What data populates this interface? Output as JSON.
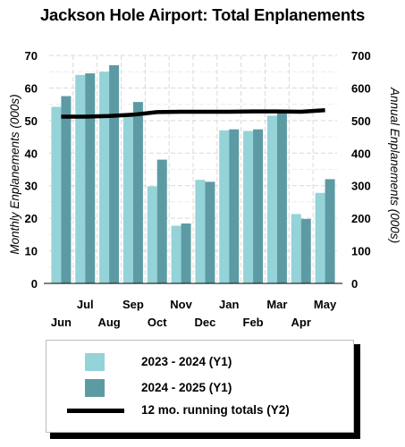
{
  "chart_data": {
    "type": "bar",
    "title": "Jackson Hole Airport: Total Enplanements",
    "categories": [
      "Jun",
      "Jul",
      "Aug",
      "Sep",
      "Oct",
      "Nov",
      "Dec",
      "Jan",
      "Feb",
      "Mar",
      "Apr",
      "May"
    ],
    "ylabel": "Monthly Enplanements (000s)",
    "y2label": "Annual Enplanements (000s)",
    "ylim": [
      0,
      70
    ],
    "yticks": [
      0,
      10,
      20,
      30,
      40,
      50,
      60,
      70
    ],
    "y2lim": [
      0,
      700
    ],
    "y2ticks": [
      0,
      100,
      200,
      300,
      400,
      500,
      600,
      700
    ],
    "grid": true,
    "legend_position": "bottom",
    "series": [
      {
        "name": "2023 - 2024 (Y1)",
        "axis": "y1",
        "kind": "bar",
        "color": "#94d3d8",
        "values": [
          54.2,
          64.0,
          65.0,
          51.5,
          29.8,
          17.7,
          31.8,
          47.0,
          46.8,
          51.5,
          21.3,
          27.8
        ]
      },
      {
        "name": "2024 - 2025 (Y1)",
        "axis": "y1",
        "kind": "bar",
        "color": "#5d9ba4",
        "values": [
          57.5,
          64.5,
          67.0,
          55.7,
          38.0,
          18.4,
          31.2,
          47.3,
          47.3,
          52.5,
          19.8,
          32.0
        ]
      },
      {
        "name": "12 mo. running totals (Y2)",
        "axis": "y2",
        "kind": "line",
        "color": "#000000",
        "values": [
          512,
          512,
          514,
          518,
          526,
          527,
          527,
          527,
          528,
          528,
          527,
          532
        ]
      }
    ]
  }
}
